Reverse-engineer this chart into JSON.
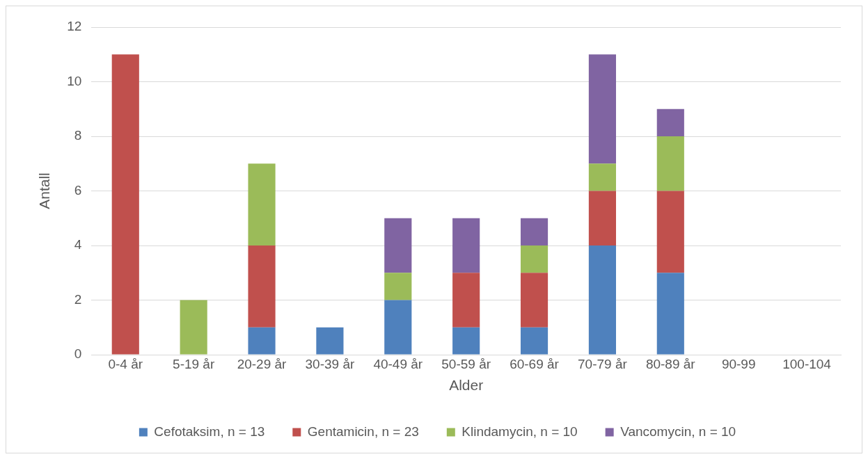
{
  "chart_data": {
    "type": "bar",
    "stacked": true,
    "xlabel": "Alder",
    "ylabel": "Antall",
    "categories": [
      "0-4 år",
      "5-19 år",
      "20-29 år",
      "30-39 år",
      "40-49 år",
      "50-59 år",
      "60-69 år",
      "70-79 år",
      "80-89 år",
      "90-99",
      "100-104"
    ],
    "series": [
      {
        "name": "Cefotaksim, n = 13",
        "color": "#4f81bd",
        "values": [
          0,
          0,
          1,
          1,
          2,
          1,
          1,
          4,
          3,
          0,
          0
        ]
      },
      {
        "name": "Gentamicin, n = 23",
        "color": "#c0504d",
        "values": [
          11,
          0,
          3,
          0,
          0,
          2,
          2,
          2,
          3,
          0,
          0
        ]
      },
      {
        "name": "Klindamycin, n = 10",
        "color": "#9bbb59",
        "values": [
          0,
          2,
          3,
          0,
          1,
          0,
          1,
          1,
          2,
          0,
          0
        ]
      },
      {
        "name": "Vancomycin, n = 10",
        "color": "#8064a2",
        "values": [
          0,
          0,
          0,
          0,
          2,
          2,
          1,
          4,
          1,
          0,
          0
        ]
      }
    ],
    "ylim": [
      0,
      12
    ],
    "yticks": [
      0,
      2,
      4,
      6,
      8,
      10,
      12
    ],
    "grid": "y",
    "legend": "bottom"
  }
}
